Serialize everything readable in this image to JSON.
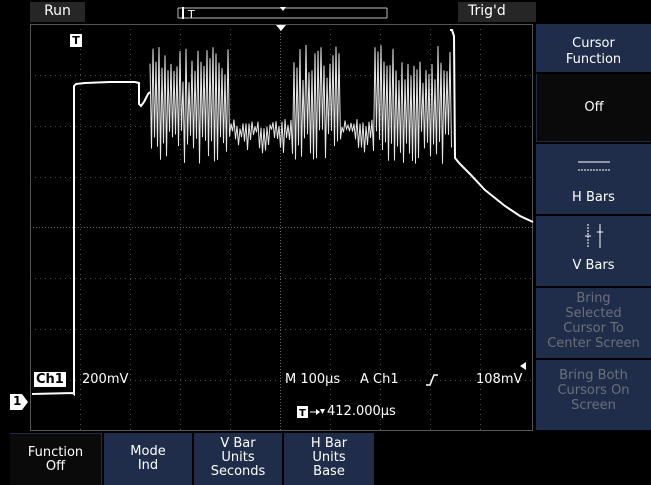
{
  "status": {
    "run_label": "Run",
    "trig_label": "Trig'd"
  },
  "screen": {
    "ch_badge": "Ch1",
    "ch_scale": "200mV",
    "timebase": "M 100µs",
    "trigger_source": "A  Ch1",
    "trigger_level": "108mV",
    "trigger_position": "412.000µs",
    "ch_marker": "1",
    "trigger_marker": "T"
  },
  "side_menu": {
    "title_line1": "Cursor",
    "title_line2": "Function",
    "off_label": "Off",
    "hbars_label": "H Bars",
    "vbars_label": "V Bars",
    "bring_selected_line1": "Bring",
    "bring_selected_line2": "Selected",
    "bring_selected_line3": "Cursor To",
    "bring_selected_line4": "Center Screen",
    "bring_both_line1": "Bring Both",
    "bring_both_line2": "Cursors On",
    "bring_both_line3": "Screen"
  },
  "bottom_menu": {
    "function_line1": "Function",
    "function_line2": "Off",
    "mode_line1": "Mode",
    "mode_line2": "Ind",
    "vbar_line1": "V Bar",
    "vbar_line2": "Units",
    "vbar_line3": "Seconds",
    "hbar_line1": "H Bar",
    "hbar_line2": "Units",
    "hbar_line3": "Base"
  },
  "colors": {
    "menu_blue": "#1f2d4a",
    "menu_selected": "#0a0a0a",
    "menu_disabled_text": "#6a6f79",
    "grid": "#5a5a5a",
    "trace": "#ffffff"
  }
}
